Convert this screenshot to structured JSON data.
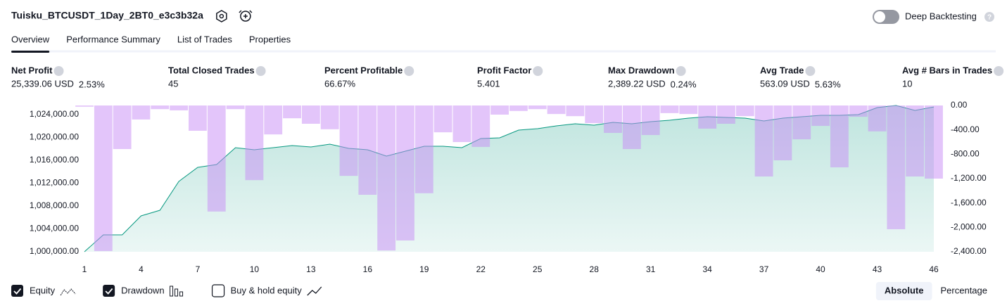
{
  "header": {
    "title": "Tuisku_BTCUSDT_1Day_2BT0_e3c3b32a",
    "toggle_label": "Deep Backtesting",
    "toggle_on": false
  },
  "tabs": [
    {
      "label": "Overview",
      "active": true
    },
    {
      "label": "Performance Summary",
      "active": false
    },
    {
      "label": "List of Trades",
      "active": false
    },
    {
      "label": "Properties",
      "active": false
    }
  ],
  "metrics": [
    {
      "label": "Net Profit",
      "value": "25,339.06 USD",
      "percent": "2.53%",
      "color": "#089981"
    },
    {
      "label": "Total Closed Trades",
      "value": "45",
      "color": "#131722"
    },
    {
      "label": "Percent Profitable",
      "value": "66.67%",
      "color": "#089981"
    },
    {
      "label": "Profit Factor",
      "value": "5.401",
      "color": "#089981"
    },
    {
      "label": "Max Drawdown",
      "value": "2,389.22 USD",
      "percent": "0.24%",
      "color": "#f23645"
    },
    {
      "label": "Avg Trade",
      "value": "563.09 USD",
      "percent": "5.63%",
      "color": "#089981"
    },
    {
      "label": "Avg # Bars in Trades",
      "value": "10",
      "color": "#131722"
    }
  ],
  "chart_data": {
    "type": "line",
    "x": [
      1,
      2,
      3,
      4,
      5,
      6,
      7,
      8,
      9,
      10,
      11,
      12,
      13,
      14,
      15,
      16,
      17,
      18,
      19,
      20,
      21,
      22,
      23,
      24,
      25,
      26,
      27,
      28,
      29,
      30,
      31,
      32,
      33,
      34,
      35,
      36,
      37,
      38,
      39,
      40,
      41,
      42,
      43,
      44,
      45,
      46
    ],
    "xlim": [
      1,
      46
    ],
    "xticks": [
      1,
      4,
      7,
      10,
      13,
      16,
      19,
      22,
      25,
      28,
      31,
      34,
      37,
      40,
      43,
      46
    ],
    "ylim": [
      1000000,
      1025600
    ],
    "yticks": [
      {
        "value": 1000000,
        "label": "1,000,000.00"
      },
      {
        "value": 1004000,
        "label": "1,004,000.00"
      },
      {
        "value": 1008000,
        "label": "1,008,000.00"
      },
      {
        "value": 1012000,
        "label": "1,012,000.00"
      },
      {
        "value": 1016000,
        "label": "1,016,000.00"
      },
      {
        "value": 1020000,
        "label": "1,020,000.00"
      },
      {
        "value": 1024000,
        "label": "1,024,000.00"
      }
    ],
    "y2lim": [
      -2400,
      0
    ],
    "y2ticks": [
      {
        "value": 0,
        "label": "0.00"
      },
      {
        "value": -400,
        "label": "-400.00"
      },
      {
        "value": -800,
        "label": "-800.00"
      },
      {
        "value": -1200,
        "label": "-1,200.00"
      },
      {
        "value": -1600,
        "label": "-1,600.00"
      },
      {
        "value": -2000,
        "label": "-2,000.00"
      },
      {
        "value": -2400,
        "label": "-2,400.00"
      }
    ],
    "grid": false,
    "series": [
      {
        "name": "Equity",
        "type": "area",
        "color": "#089981",
        "checked": true,
        "values": [
          1000000,
          1002950,
          1002950,
          1006280,
          1007260,
          1012310,
          1014770,
          1015260,
          1018220,
          1017850,
          1018220,
          1018580,
          1018340,
          1018830,
          1018090,
          1017850,
          1016740,
          1017600,
          1018460,
          1018460,
          1018220,
          1019820,
          1019940,
          1021290,
          1021540,
          1022030,
          1022400,
          1022150,
          1022650,
          1022400,
          1022770,
          1023020,
          1023380,
          1023630,
          1023510,
          1023380,
          1022890,
          1023380,
          1023630,
          1023880,
          1023880,
          1024000,
          1025230,
          1025600,
          1024740,
          1025340
        ]
      },
      {
        "name": "Drawdown",
        "type": "bar",
        "axis": "y2",
        "color": "#c88cf5",
        "checked": true,
        "values": [
          -20,
          -2389,
          -715,
          -230,
          -60,
          -80,
          -415,
          -1740,
          -60,
          -1225,
          -475,
          -210,
          -300,
          -390,
          -1155,
          -1465,
          -2380,
          -2215,
          -1440,
          -440,
          -600,
          -680,
          -150,
          -90,
          -60,
          -140,
          -175,
          -290,
          -450,
          -715,
          -485,
          -125,
          -140,
          -380,
          -300,
          -175,
          -1165,
          -900,
          -555,
          -335,
          -1015,
          -185,
          -425,
          -2030,
          -1165,
          -1200
        ]
      }
    ]
  },
  "buy_hold": {
    "label": "Buy & hold equity",
    "checked": false
  },
  "view_modes": [
    {
      "label": "Absolute",
      "active": true
    },
    {
      "label": "Percentage",
      "active": false
    }
  ]
}
